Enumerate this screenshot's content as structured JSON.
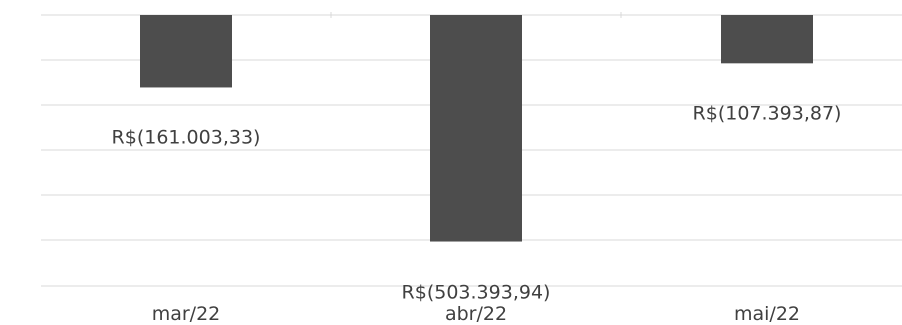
{
  "chart_data": {
    "type": "bar",
    "categories": [
      "mar/22",
      "abr/22",
      "mai/22"
    ],
    "values": [
      -161003.33,
      -503393.94,
      -107393.87
    ],
    "data_labels": [
      "R$(161.003,33)",
      "R$(503.393,94)",
      "R$(107.393,87)"
    ],
    "ylim": [
      -600000,
      0
    ],
    "grid": true,
    "legend": "none",
    "colors": {
      "bar": "#4d4d4d",
      "grid": "#d9d9d9",
      "text": "#404040"
    }
  }
}
